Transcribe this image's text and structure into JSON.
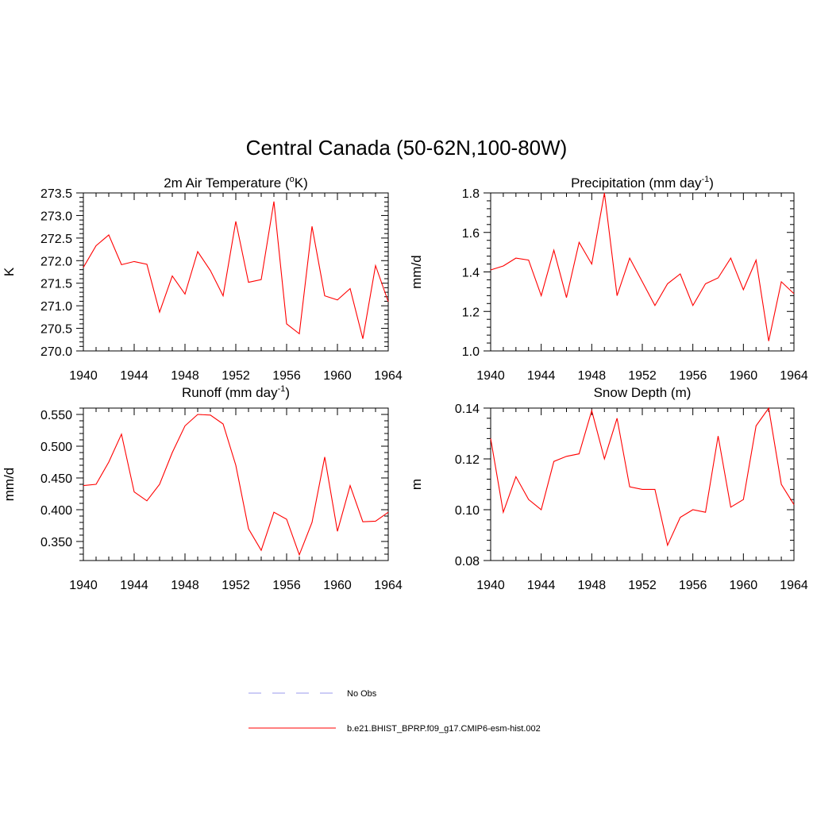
{
  "figure_title": "Central Canada (50-62N,100-80W)",
  "legend": [
    {
      "label": "No Obs",
      "color": "#9999ee",
      "style": "dashed"
    },
    {
      "label": "b.e21.BHIST_BPRP.f09_g17.CMIP6-esm-hist.002",
      "color": "#ff0000",
      "style": "solid"
    }
  ],
  "chart_data": [
    {
      "type": "line",
      "title": "2m Air Temperature (",
      "title_sup": "o",
      "title_suffix": "K)",
      "ylabel": "K",
      "xlim": [
        1940,
        1964
      ],
      "ylim": [
        270.0,
        273.5
      ],
      "xticks": [
        "1940",
        "1944",
        "1948",
        "1952",
        "1956",
        "1960",
        "1964"
      ],
      "yticks": [
        "270.0",
        "270.5",
        "271.0",
        "271.5",
        "272.0",
        "272.5",
        "273.0",
        "273.5"
      ],
      "series": [
        {
          "color": "#ff0000",
          "x": [
            1940,
            1941,
            1942,
            1943,
            1944,
            1945,
            1946,
            1947,
            1948,
            1949,
            1950,
            1951,
            1952,
            1953,
            1954,
            1955,
            1956,
            1957,
            1958,
            1959,
            1960,
            1961,
            1962,
            1963,
            1964
          ],
          "y": [
            271.85,
            272.33,
            272.57,
            271.91,
            271.98,
            271.92,
            270.86,
            271.66,
            271.26,
            272.2,
            271.78,
            271.22,
            272.87,
            271.52,
            271.58,
            273.31,
            270.6,
            270.38,
            272.76,
            271.22,
            271.13,
            271.38,
            270.27,
            271.89,
            271.09
          ]
        }
      ]
    },
    {
      "type": "line",
      "title": "Precipitation (mm day",
      "title_sup": "-1",
      "title_suffix": ")",
      "ylabel": "mm/d",
      "xlim": [
        1940,
        1964
      ],
      "ylim": [
        1.0,
        1.8
      ],
      "xticks": [
        "1940",
        "1944",
        "1948",
        "1952",
        "1956",
        "1960",
        "1964"
      ],
      "yticks": [
        "1.0",
        "1.2",
        "1.4",
        "1.6",
        "1.8"
      ],
      "series": [
        {
          "color": "#ff0000",
          "x": [
            1940,
            1941,
            1942,
            1943,
            1944,
            1945,
            1946,
            1947,
            1948,
            1949,
            1950,
            1951,
            1952,
            1953,
            1954,
            1955,
            1956,
            1957,
            1958,
            1959,
            1960,
            1961,
            1962,
            1963,
            1964
          ],
          "y": [
            1.41,
            1.43,
            1.47,
            1.46,
            1.28,
            1.51,
            1.27,
            1.55,
            1.44,
            1.8,
            1.28,
            1.47,
            1.35,
            1.23,
            1.34,
            1.39,
            1.23,
            1.34,
            1.37,
            1.47,
            1.31,
            1.46,
            1.05,
            1.35,
            1.29
          ]
        }
      ]
    },
    {
      "type": "line",
      "title": "Runoff (mm day",
      "title_sup": "-1",
      "title_suffix": ")",
      "ylabel": "mm/d",
      "xlim": [
        1940,
        1964
      ],
      "ylim": [
        0.32,
        0.56
      ],
      "xticks": [
        "1940",
        "1944",
        "1948",
        "1952",
        "1956",
        "1960",
        "1964"
      ],
      "yticks": [
        "0.350",
        "0.400",
        "0.450",
        "0.500",
        "0.550"
      ],
      "ytick_values": [
        0.35,
        0.4,
        0.45,
        0.5,
        0.55
      ],
      "series": [
        {
          "color": "#ff0000",
          "x": [
            1940,
            1941,
            1942,
            1943,
            1944,
            1945,
            1946,
            1947,
            1948,
            1949,
            1950,
            1951,
            1952,
            1953,
            1954,
            1955,
            1956,
            1957,
            1958,
            1959,
            1960,
            1961,
            1962,
            1963,
            1964
          ],
          "y": [
            0.438,
            0.44,
            0.475,
            0.519,
            0.428,
            0.414,
            0.44,
            0.49,
            0.532,
            0.55,
            0.549,
            0.535,
            0.47,
            0.37,
            0.336,
            0.396,
            0.385,
            0.329,
            0.38,
            0.483,
            0.366,
            0.438,
            0.381,
            0.382,
            0.396
          ]
        }
      ]
    },
    {
      "type": "line",
      "title": "Snow Depth (m)",
      "title_sup": "",
      "title_suffix": "",
      "ylabel": "m",
      "xlim": [
        1940,
        1964
      ],
      "ylim": [
        0.08,
        0.14
      ],
      "xticks": [
        "1940",
        "1944",
        "1948",
        "1952",
        "1956",
        "1960",
        "1964"
      ],
      "yticks": [
        "0.08",
        "0.10",
        "0.12",
        "0.14"
      ],
      "series": [
        {
          "color": "#ff0000",
          "x": [
            1940,
            1941,
            1942,
            1943,
            1944,
            1945,
            1946,
            1947,
            1948,
            1949,
            1950,
            1951,
            1952,
            1953,
            1954,
            1955,
            1956,
            1957,
            1958,
            1959,
            1960,
            1961,
            1962,
            1963,
            1964
          ],
          "y": [
            0.128,
            0.099,
            0.113,
            0.104,
            0.1,
            0.119,
            0.121,
            0.122,
            0.139,
            0.12,
            0.136,
            0.109,
            0.108,
            0.108,
            0.086,
            0.097,
            0.1,
            0.099,
            0.129,
            0.101,
            0.104,
            0.133,
            0.14,
            0.11,
            0.102
          ]
        }
      ]
    }
  ]
}
